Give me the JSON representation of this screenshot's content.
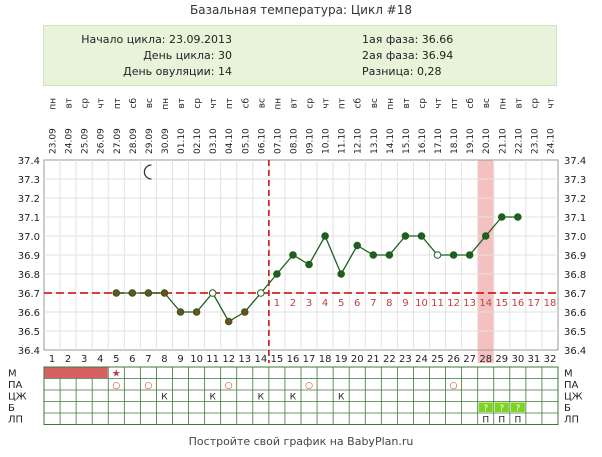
{
  "title": "Базальная температура: Цикл #18",
  "info": {
    "cycle_start": "Начало цикла: 23.09.2013",
    "cycle_day": "День цикла: 30",
    "ovulation_day": "День овуляции: 14",
    "phase1": "1ая фаза: 36.66",
    "phase2": "2ая фаза: 36.94",
    "difference": "Разница: 0,28"
  },
  "footer": "Постройте свой график на BabyPlan.ru",
  "colors": {
    "line": "#1e5f1e",
    "phase1_point": "#7a4a1a",
    "coverline": "#cc0000",
    "period": "#d86060",
    "ovulation_band": "#f5c0c0",
    "question": "#7ed321",
    "moon": "#333333"
  },
  "chart_data": {
    "type": "line",
    "ylim": [
      36.4,
      37.4
    ],
    "yticks": [
      "37.4",
      "37.3",
      "37.2",
      "37.1",
      "37.0",
      "36.9",
      "36.8",
      "36.7",
      "36.6",
      "36.5",
      "36.4"
    ],
    "coverline": 36.7,
    "ovulation_day": 14,
    "highlight_day": 28,
    "moon_day": 7,
    "days": [
      1,
      2,
      3,
      4,
      5,
      6,
      7,
      8,
      9,
      10,
      11,
      12,
      13,
      14,
      15,
      16,
      17,
      18,
      19,
      20,
      21,
      22,
      23,
      24,
      25,
      26,
      27,
      28,
      29,
      30,
      31,
      32
    ],
    "dates": [
      "23.09",
      "24.09",
      "25.09",
      "26.09",
      "27.09",
      "28.09",
      "29.09",
      "30.09",
      "01.10",
      "02.10",
      "03.10",
      "04.10",
      "05.10",
      "06.10",
      "07.10",
      "08.10",
      "09.10",
      "10.10",
      "11.10",
      "12.10",
      "13.10",
      "14.10",
      "15.10",
      "16.10",
      "17.10",
      "18.10",
      "19.10",
      "20.10",
      "21.10",
      "22.10",
      "23.10",
      "24.10"
    ],
    "weekdays": [
      "пн",
      "вт",
      "ср",
      "чт",
      "пт",
      "сб",
      "вс",
      "пн",
      "вт",
      "ср",
      "чт",
      "пт",
      "сб",
      "вс",
      "пн",
      "вт",
      "ср",
      "чт",
      "пт",
      "сб",
      "вс",
      "пн",
      "вт",
      "ср",
      "чт",
      "пт",
      "сб",
      "вс",
      "пн",
      "вт",
      "ср",
      "чт"
    ],
    "temperatures": [
      null,
      null,
      null,
      null,
      36.7,
      36.7,
      36.7,
      36.7,
      36.6,
      36.6,
      36.7,
      36.55,
      36.6,
      36.7,
      36.8,
      36.9,
      36.85,
      37.0,
      36.8,
      36.95,
      36.9,
      36.9,
      37.0,
      37.0,
      36.9,
      36.9,
      36.9,
      37.0,
      37.1,
      37.1,
      null,
      null
    ],
    "open_points": [
      11,
      14,
      25
    ],
    "phase2_labels": [
      "1",
      "2",
      "3",
      "4",
      "5",
      "6",
      "7",
      "8",
      "9",
      "10",
      "11",
      "12",
      "13",
      "14",
      "15",
      "16",
      "17",
      "18"
    ],
    "rows": {
      "labels": [
        "М",
        "ПА",
        "ЦЖ",
        "Б",
        "ЛП"
      ],
      "period_days": [
        1,
        2,
        3,
        4
      ],
      "period_star_day": 5,
      "pa_days": [
        5,
        7,
        12,
        17,
        26
      ],
      "pa_symbol": "○",
      "cj_days": [
        8,
        11,
        14,
        16,
        19
      ],
      "cj_symbol": "К",
      "b_days": [
        28,
        29,
        30
      ],
      "b_symbol": "?",
      "lp_days": [
        28,
        29,
        30
      ],
      "lp_symbol": "П",
      "star_symbol": "★"
    }
  }
}
